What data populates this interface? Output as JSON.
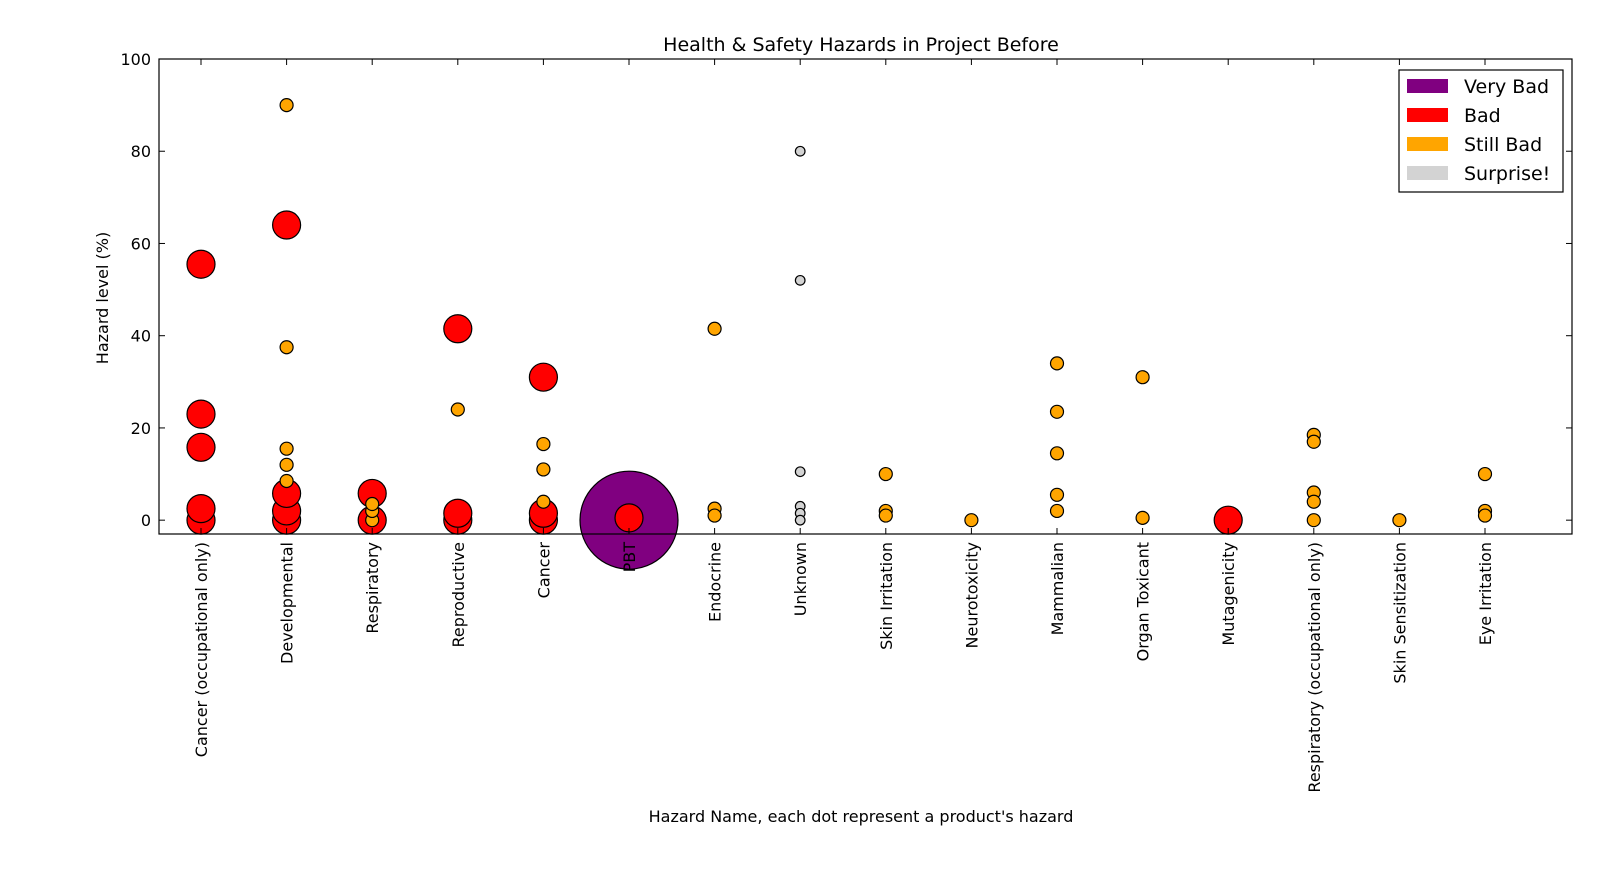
{
  "chart_data": {
    "type": "scatter",
    "title": "Health & Safety Hazards in Project Before",
    "xlabel": "Hazard Name, each dot represent a product's hazard",
    "ylabel": "Hazard level (%)",
    "ylim": [
      -3,
      100
    ],
    "yticks": [
      0,
      20,
      40,
      60,
      80,
      100
    ],
    "categories": [
      "Cancer (occupational only)",
      "Developmental",
      "Respiratory",
      "Reproductive",
      "Cancer",
      "PBT",
      "Endocrine",
      "Unknown",
      "Skin Irritation",
      "Neurotoxicity",
      "Mammalian",
      "Organ Toxicant",
      "Mutagenicity",
      "Respiratory (occupational only)",
      "Skin Sensitization",
      "Eye Irritation"
    ],
    "legend": {
      "position": "top-right",
      "entries": [
        {
          "label": "Very Bad",
          "color": "#800080"
        },
        {
          "label": "Bad",
          "color": "#ff0000"
        },
        {
          "label": "Still Bad",
          "color": "#ffa500"
        },
        {
          "label": "Surprise!",
          "color": "#d3d3d3"
        }
      ]
    },
    "severity_colors": {
      "very_bad": "#800080",
      "bad": "#ff0000",
      "still_bad": "#ffa500",
      "surprise": "#d3d3d3"
    },
    "series": [
      {
        "name": "Very Bad",
        "severity": "very_bad",
        "points": [
          {
            "category": "PBT",
            "y": 0
          }
        ]
      },
      {
        "name": "Bad",
        "severity": "bad",
        "points": [
          {
            "category": "Cancer (occupational only)",
            "y": 0
          },
          {
            "category": "Cancer (occupational only)",
            "y": 2.5
          },
          {
            "category": "Cancer (occupational only)",
            "y": 15.8
          },
          {
            "category": "Cancer (occupational only)",
            "y": 23
          },
          {
            "category": "Cancer (occupational only)",
            "y": 55.5
          },
          {
            "category": "Developmental",
            "y": 0
          },
          {
            "category": "Developmental",
            "y": 2
          },
          {
            "category": "Developmental",
            "y": 5.8
          },
          {
            "category": "Developmental",
            "y": 64
          },
          {
            "category": "Respiratory",
            "y": 0
          },
          {
            "category": "Respiratory",
            "y": 5.8
          },
          {
            "category": "Reproductive",
            "y": 0
          },
          {
            "category": "Reproductive",
            "y": 1.5
          },
          {
            "category": "Reproductive",
            "y": 41.5
          },
          {
            "category": "Cancer",
            "y": 0
          },
          {
            "category": "Cancer",
            "y": 1.5
          },
          {
            "category": "Cancer",
            "y": 31
          },
          {
            "category": "PBT",
            "y": 0.5
          },
          {
            "category": "Mutagenicity",
            "y": 0
          }
        ]
      },
      {
        "name": "Still Bad",
        "severity": "still_bad",
        "points": [
          {
            "category": "Developmental",
            "y": 90
          },
          {
            "category": "Developmental",
            "y": 37.5
          },
          {
            "category": "Developmental",
            "y": 15.5
          },
          {
            "category": "Developmental",
            "y": 12
          },
          {
            "category": "Developmental",
            "y": 8.5
          },
          {
            "category": "Respiratory",
            "y": 0
          },
          {
            "category": "Respiratory",
            "y": 2
          },
          {
            "category": "Respiratory",
            "y": 3.5
          },
          {
            "category": "Reproductive",
            "y": 24
          },
          {
            "category": "Cancer",
            "y": 16.5
          },
          {
            "category": "Cancer",
            "y": 11
          },
          {
            "category": "Cancer",
            "y": 4
          },
          {
            "category": "Endocrine",
            "y": 41.5
          },
          {
            "category": "Endocrine",
            "y": 2.5
          },
          {
            "category": "Endocrine",
            "y": 1
          },
          {
            "category": "Skin Irritation",
            "y": 10
          },
          {
            "category": "Skin Irritation",
            "y": 2
          },
          {
            "category": "Skin Irritation",
            "y": 1
          },
          {
            "category": "Neurotoxicity",
            "y": 0
          },
          {
            "category": "Mammalian",
            "y": 34
          },
          {
            "category": "Mammalian",
            "y": 23.5
          },
          {
            "category": "Mammalian",
            "y": 14.5
          },
          {
            "category": "Mammalian",
            "y": 5.5
          },
          {
            "category": "Mammalian",
            "y": 2
          },
          {
            "category": "Organ Toxicant",
            "y": 31
          },
          {
            "category": "Organ Toxicant",
            "y": 0.5
          },
          {
            "category": "Respiratory (occupational only)",
            "y": 18.5
          },
          {
            "category": "Respiratory (occupational only)",
            "y": 17
          },
          {
            "category": "Respiratory (occupational only)",
            "y": 6
          },
          {
            "category": "Respiratory (occupational only)",
            "y": 4
          },
          {
            "category": "Respiratory (occupational only)",
            "y": 0
          },
          {
            "category": "Skin Sensitization",
            "y": 0
          },
          {
            "category": "Eye Irritation",
            "y": 10
          },
          {
            "category": "Eye Irritation",
            "y": 2
          },
          {
            "category": "Eye Irritation",
            "y": 1
          }
        ]
      },
      {
        "name": "Surprise!",
        "severity": "surprise",
        "points": [
          {
            "category": "Unknown",
            "y": 80
          },
          {
            "category": "Unknown",
            "y": 52
          },
          {
            "category": "Unknown",
            "y": 10.5
          },
          {
            "category": "Unknown",
            "y": 3
          },
          {
            "category": "Unknown",
            "y": 1.5
          },
          {
            "category": "Unknown",
            "y": 0
          }
        ]
      }
    ]
  }
}
